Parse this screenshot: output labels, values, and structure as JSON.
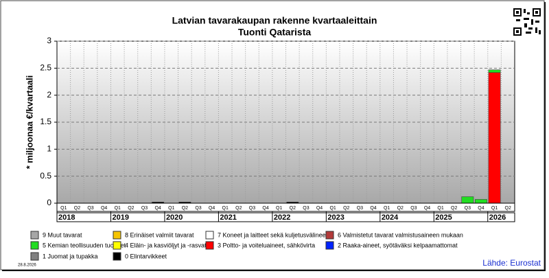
{
  "chart_data": {
    "type": "bar",
    "stacked": true,
    "title": "Latvian tavarakaupan rakenne kvartaaleittain",
    "subtitle": "Tuonti Qatarista",
    "y_label": "* miljoonaa €/kvartaali",
    "date": "28.8.2026",
    "source": "Lähde: Eurostat",
    "categories": [
      "Q1",
      "Q2",
      "Q3",
      "Q4",
      "Q1",
      "Q2",
      "Q3",
      "Q4",
      "Q1",
      "Q2",
      "Q3",
      "Q4",
      "Q1",
      "Q2",
      "Q3",
      "Q4",
      "Q1",
      "Q2",
      "Q3",
      "Q4",
      "Q1",
      "Q2",
      "Q3",
      "Q4",
      "Q1",
      "Q2",
      "Q3",
      "Q4",
      "Q1",
      "Q2",
      "Q3",
      "Q4",
      "Q1",
      "Q2"
    ],
    "years": [
      "2018",
      "2019",
      "2020",
      "2021",
      "2022",
      "2023",
      "2024",
      "2025",
      "2026"
    ],
    "ylim": [
      0,
      3
    ],
    "yticks": [
      0,
      0.5,
      1,
      1.5,
      2,
      2.5,
      3
    ],
    "grid": true,
    "series": [
      {
        "name": "9 Muut tavarat",
        "color": "#a6a6a6",
        "values": [
          0,
          0,
          0,
          0,
          0,
          0,
          0,
          0,
          0,
          0,
          0,
          0,
          0,
          0,
          0,
          0,
          0,
          0,
          0,
          0,
          0,
          0,
          0,
          0,
          0,
          0,
          0,
          0,
          0,
          0,
          0,
          0,
          0,
          0
        ]
      },
      {
        "name": "8 Erinäiset valmiit tavarat",
        "color": "#f5c400",
        "values": [
          0,
          0,
          0,
          0,
          0,
          0,
          0,
          0,
          0,
          0,
          0,
          0,
          0,
          0,
          0,
          0,
          0,
          0,
          0,
          0,
          0,
          0,
          0,
          0,
          0,
          0,
          0,
          0,
          0,
          0,
          0,
          0,
          0,
          0
        ]
      },
      {
        "name": "7 Koneet ja laitteet sekä kuljetusvälineet",
        "color": "#ffffff",
        "values": [
          0,
          0,
          0,
          0,
          0,
          0,
          0,
          0,
          0,
          0,
          0,
          0,
          0,
          0,
          0,
          0,
          0,
          0,
          0,
          0,
          0,
          0,
          0,
          0,
          0,
          0,
          0,
          0,
          0,
          0,
          0,
          0,
          0,
          0
        ]
      },
      {
        "name": "6 Valmistetut tavarat valmistusaineen mukaan",
        "color": "#b23a3a",
        "values": [
          0,
          0,
          0,
          0,
          0,
          0,
          0,
          0,
          0,
          0,
          0,
          0,
          0,
          0,
          0,
          0,
          0,
          0,
          0,
          0,
          0,
          0,
          0,
          0,
          0,
          0,
          0,
          0,
          0,
          0,
          0,
          0,
          0,
          0
        ]
      },
      {
        "name": "5 Kemian teollisuuden tuotteet",
        "color": "#22dd22",
        "values": [
          0,
          0,
          0,
          0,
          0,
          0,
          0,
          0,
          0,
          0,
          0,
          0,
          0,
          0,
          0,
          0,
          0,
          0,
          0,
          0,
          0,
          0,
          0,
          0,
          0,
          0,
          0,
          0,
          0,
          0,
          0.12,
          0.07,
          0.05,
          0
        ]
      },
      {
        "name": "4 Eläin- ja kasviöljyt ja -rasvat",
        "color": "#ffff00",
        "values": [
          0,
          0,
          0,
          0,
          0,
          0,
          0,
          0,
          0,
          0,
          0,
          0,
          0,
          0,
          0,
          0,
          0,
          0,
          0,
          0,
          0,
          0,
          0,
          0,
          0,
          0,
          0,
          0,
          0,
          0,
          0,
          0,
          0,
          0
        ]
      },
      {
        "name": "3 Poltto- ja voiteluaineet, sähkövirta",
        "color": "#ff0000",
        "values": [
          0,
          0,
          0,
          0,
          0,
          0,
          0,
          0,
          0,
          0,
          0,
          0,
          0,
          0,
          0,
          0,
          0,
          0,
          0,
          0,
          0,
          0,
          0,
          0,
          0,
          0,
          0,
          0,
          0,
          0,
          0,
          0,
          2.42,
          0
        ]
      },
      {
        "name": "2 Raaka-aineet, syötäväksi kelpaamattomat",
        "color": "#0022ff",
        "values": [
          0,
          0,
          0,
          0,
          0,
          0,
          0,
          0,
          0,
          0,
          0,
          0,
          0,
          0,
          0,
          0,
          0,
          0,
          0,
          0,
          0,
          0,
          0,
          0,
          0,
          0,
          0,
          0,
          0,
          0,
          0,
          0,
          0,
          0
        ]
      },
      {
        "name": "1 Juomat ja tupakka",
        "color": "#808080",
        "values": [
          0,
          0,
          0,
          0,
          0,
          0,
          0,
          0,
          0,
          0,
          0,
          0,
          0,
          0,
          0,
          0,
          0,
          0,
          0,
          0,
          0,
          0,
          0,
          0,
          0,
          0,
          0,
          0,
          0,
          0,
          0,
          0,
          0,
          0
        ]
      },
      {
        "name": "0 Elintarvikkeet",
        "color": "#000000",
        "values": [
          0,
          0,
          0,
          0,
          0,
          0,
          0,
          0.02,
          0,
          0.02,
          0,
          0,
          0,
          0,
          0,
          0,
          0,
          0.02,
          0,
          0,
          0,
          0,
          0,
          0,
          0,
          0,
          0,
          0,
          0,
          0,
          0,
          0,
          0,
          0
        ]
      }
    ]
  }
}
